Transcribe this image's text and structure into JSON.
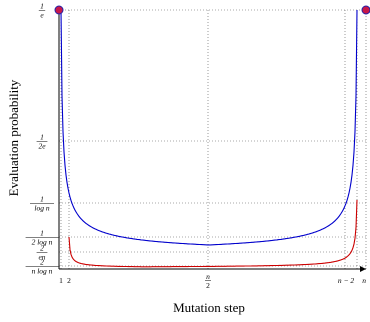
{
  "chart_data": {
    "type": "line",
    "title": "",
    "xlabel": "Mutation step",
    "ylabel": "Evaluation probability",
    "x_ticks": [
      {
        "num": "1",
        "den": ""
      },
      {
        "num": "2",
        "den": ""
      },
      {
        "num": "n",
        "den": "2"
      },
      {
        "num": "n − 2",
        "den": ""
      },
      {
        "num": "n",
        "den": ""
      }
    ],
    "y_ticks": [
      {
        "num": "1",
        "den": "e"
      },
      {
        "num": "1",
        "den": "2e"
      },
      {
        "num": "1",
        "den": "log n"
      },
      {
        "num": "1",
        "den": "2 log n"
      },
      {
        "num": "2",
        "den": "en"
      },
      {
        "num": "2",
        "den": "n log n"
      }
    ],
    "grid": "dotted",
    "series": [
      {
        "color": "#0000cc",
        "curve": "u-shaped, from 1/e at step 1 down to a minimum of about 2/en at n/2 and back up to 1/e at step n",
        "markers_at_endpoints": true
      },
      {
        "color": "#cc0000",
        "curve": "u-shaped, from 1/(2 log n) at step 2 down to about 2/(n log n) at n/2 and back up to 1/log n at step n − 2",
        "markers_at_endpoints": false
      }
    ],
    "marker_color": "#c8184a"
  }
}
